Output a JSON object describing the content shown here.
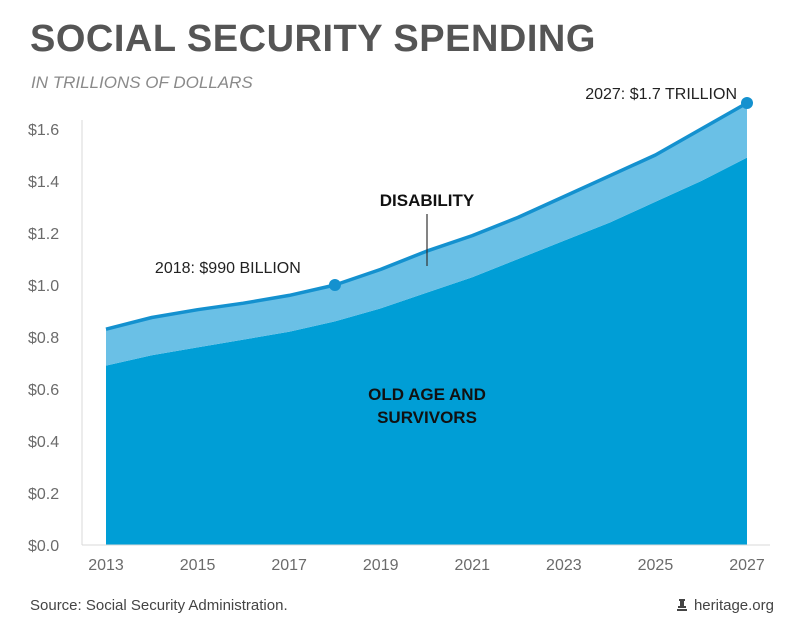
{
  "header": {
    "title": "SOCIAL SECURITY SPENDING",
    "subtitle": "IN TRILLIONS OF DOLLARS"
  },
  "footer": {
    "source": "Source: Social Security Administration.",
    "credit": "heritage.org"
  },
  "colors": {
    "old_age": "#009ed6",
    "disability": "#6ac0e6",
    "total_line": "#1491cf",
    "axis_text": "#6b6b6b"
  },
  "chart_data": {
    "type": "area",
    "stacked": true,
    "title": "SOCIAL SECURITY SPENDING",
    "subtitle": "IN TRILLIONS OF DOLLARS",
    "x": [
      2013,
      2014,
      2015,
      2016,
      2017,
      2018,
      2019,
      2020,
      2021,
      2022,
      2023,
      2024,
      2025,
      2026,
      2027
    ],
    "x_tick_labels": [
      "2013",
      "2015",
      "2017",
      "2019",
      "2021",
      "2023",
      "2025",
      "2027"
    ],
    "y_tick_labels": [
      "$0.0",
      "$0.2",
      "$0.4",
      "$0.6",
      "$0.8",
      "$1.0",
      "$1.2",
      "$1.4",
      "$1.6"
    ],
    "ylim": [
      0,
      1.6
    ],
    "series": [
      {
        "name": "OLD AGE AND SURVIVORS",
        "values": [
          0.69,
          0.73,
          0.76,
          0.79,
          0.82,
          0.86,
          0.91,
          0.97,
          1.03,
          1.1,
          1.17,
          1.24,
          1.32,
          1.4,
          1.49
        ]
      },
      {
        "name": "DISABILITY",
        "values": [
          0.14,
          0.145,
          0.145,
          0.14,
          0.14,
          0.14,
          0.15,
          0.16,
          0.16,
          0.16,
          0.17,
          0.18,
          0.18,
          0.2,
          0.21
        ]
      }
    ],
    "totals": [
      0.83,
      0.875,
      0.905,
      0.93,
      0.96,
      1.0,
      1.06,
      1.13,
      1.19,
      1.26,
      1.34,
      1.42,
      1.5,
      1.6,
      1.7
    ],
    "annotations": [
      {
        "x": 2018,
        "y": 1.0,
        "label": "2018: $990 BILLION"
      },
      {
        "x": 2027,
        "y": 1.7,
        "label": "2027: $1.7 TRILLION"
      }
    ],
    "grid": false,
    "legend": "labels-on-areas"
  }
}
